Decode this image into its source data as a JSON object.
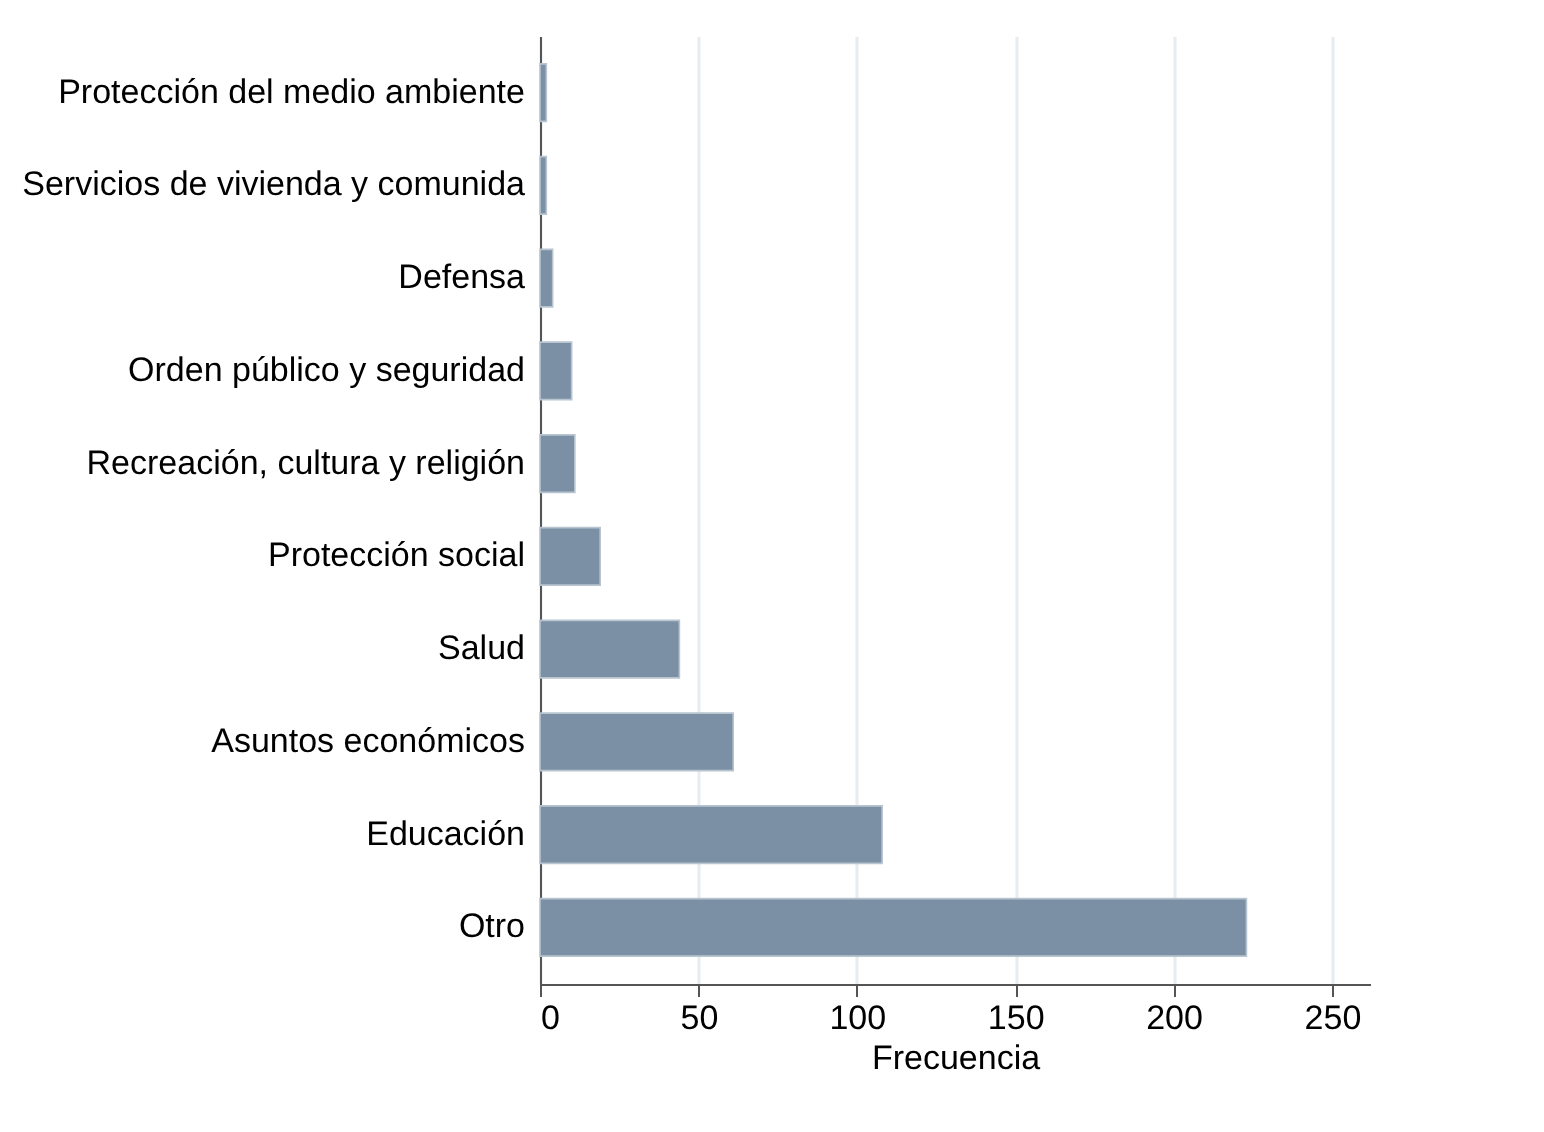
{
  "chart_data": {
    "type": "bar",
    "orientation": "horizontal",
    "xlabel": "Frecuencia",
    "categories": [
      "Protección del medio ambiente",
      "Servicios de vivienda y comunida",
      "Defensa",
      "Orden público y seguridad",
      "Recreación, cultura y religión",
      "Protección social",
      "Salud",
      "Asuntos económicos",
      "Educación",
      "Otro"
    ],
    "values": [
      2,
      2,
      4,
      10,
      11,
      19,
      44,
      61,
      108,
      223
    ],
    "color": "#7b90a4",
    "xlim": [
      0,
      262
    ],
    "xticks": [
      0,
      50,
      100,
      150,
      200,
      250
    ],
    "grid": "x"
  }
}
